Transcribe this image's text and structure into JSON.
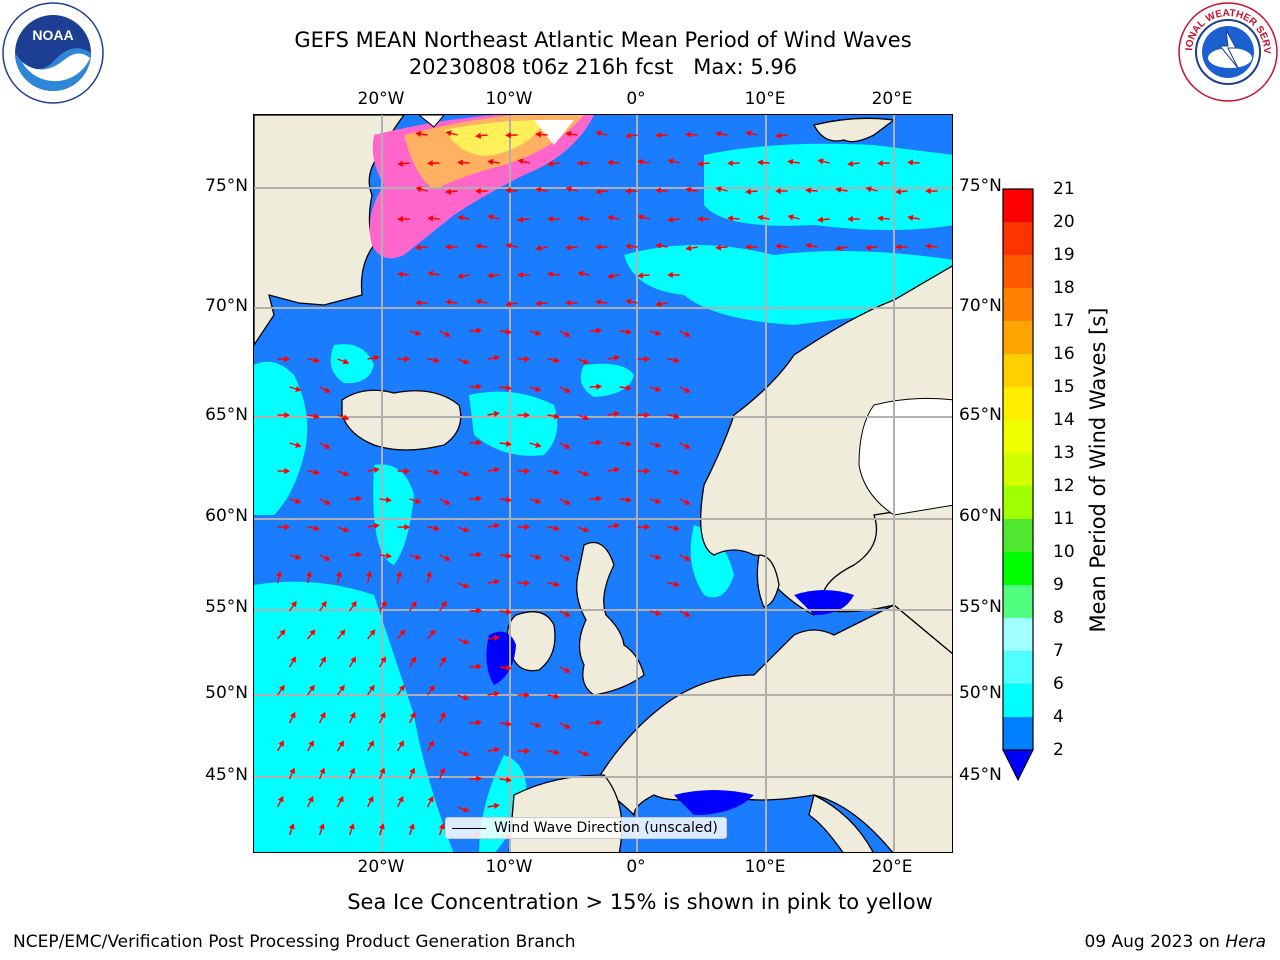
{
  "title": {
    "line1": "GEFS MEAN Northeast Atlantic Mean Period of Wind Waves",
    "line2": "20230808 t06z 216h fcst   Max: 5.96"
  },
  "logos": {
    "left": "noaa-logo",
    "right": "national-weather-service-logo",
    "noaa_text": "NOAA",
    "nws_text": "NATIONAL WEATHER SERVICE"
  },
  "map": {
    "projection": "polar stereographic",
    "lon_ticks": [
      "20°W",
      "10°W",
      "0°",
      "10°E",
      "20°E"
    ],
    "lat_ticks_left": [
      "75°N",
      "70°N",
      "65°N",
      "60°N",
      "55°N",
      "50°N",
      "45°N"
    ],
    "lat_ticks_right": [
      "75°N",
      "70°N",
      "65°N",
      "60°N",
      "55°N",
      "50°N",
      "45°N"
    ],
    "legend_label": "Wind Wave Direction (unscaled)",
    "colors": {
      "ocean_2_4": "#1a7cff",
      "ocean_4_6": "#00ffff",
      "land": "#efecdc",
      "ice_pink": "#ff66cc",
      "ice_yellow": "#fff05a",
      "grid": "#b0b0b0",
      "arrows": "#ff0000"
    }
  },
  "colorbar": {
    "label": "Mean Period of Wind Waves [s]",
    "ticks": [
      "21",
      "20",
      "19",
      "18",
      "17",
      "16",
      "15",
      "14",
      "13",
      "12",
      "11",
      "10",
      "9",
      "8",
      "7",
      "6",
      "4",
      "2"
    ],
    "colors": [
      "#ff0000",
      "#ff3300",
      "#ff5a00",
      "#ff8000",
      "#ffa500",
      "#ffd000",
      "#ffee00",
      "#f0ff00",
      "#d0ff00",
      "#a0ff00",
      "#50e830",
      "#00ff00",
      "#50ff80",
      "#a0ffff",
      "#50ffff",
      "#00ffff",
      "#0080ff",
      "#0000ff"
    ]
  },
  "ice_note": "Sea Ice Concentration > 15% is shown in pink to yellow",
  "footer": {
    "left": "NCEP/EMC/Verification Post Processing Product Generation Branch",
    "right_date": "09 Aug 2023 on",
    "right_host": "Hera"
  }
}
